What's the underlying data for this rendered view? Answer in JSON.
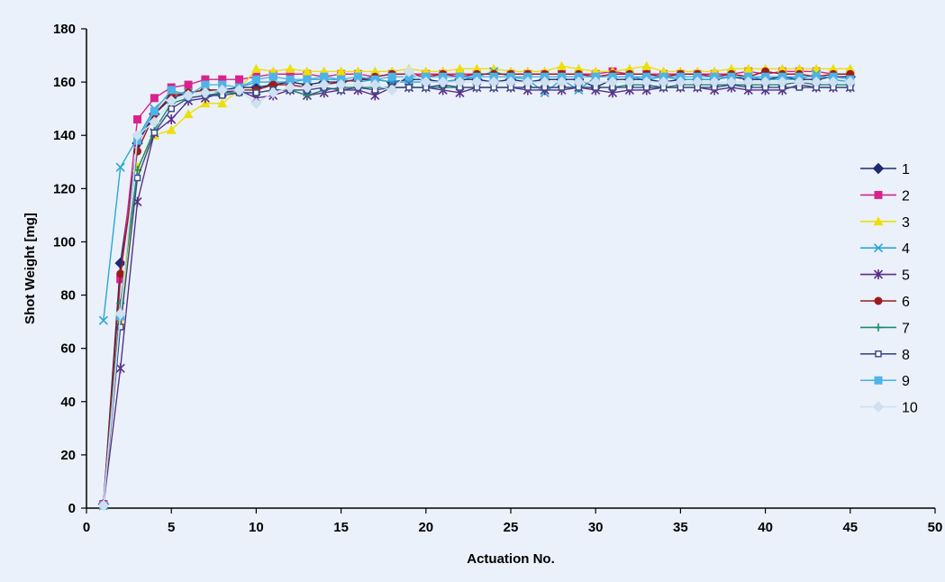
{
  "chart_data": {
    "type": "line",
    "title": "",
    "xlabel": "Actuation No.",
    "ylabel": "Shot Weight [mg]",
    "xlim": [
      0,
      50
    ],
    "ylim": [
      0,
      180
    ],
    "xticks": [
      0,
      5,
      10,
      15,
      20,
      25,
      30,
      35,
      40,
      45,
      50
    ],
    "yticks": [
      0,
      20,
      40,
      60,
      80,
      100,
      120,
      140,
      160,
      180
    ],
    "grid": false,
    "legend_position": "right",
    "x": [
      1,
      2,
      3,
      4,
      5,
      6,
      7,
      8,
      9,
      10,
      11,
      12,
      13,
      14,
      15,
      16,
      17,
      18,
      19,
      20,
      21,
      22,
      23,
      24,
      25,
      26,
      27,
      28,
      29,
      30,
      31,
      32,
      33,
      34,
      35,
      36,
      37,
      38,
      39,
      40,
      41,
      42,
      43,
      44,
      45
    ],
    "series": [
      {
        "name": "1",
        "color": "#1f2a6e",
        "marker": "diamond",
        "values": [
          1.5,
          92,
          137,
          148,
          154,
          156,
          157,
          157,
          158,
          158,
          159,
          160,
          159,
          160,
          160,
          161,
          161,
          160,
          161,
          161,
          160,
          161,
          161,
          160,
          161,
          160,
          161,
          161,
          161,
          158,
          161,
          161,
          161,
          160,
          161,
          161,
          161,
          162,
          161,
          161,
          162,
          161,
          161,
          162,
          162
        ]
      },
      {
        "name": "2",
        "color": "#d9238c",
        "marker": "square",
        "values": [
          1.5,
          86,
          146,
          154,
          158,
          159,
          161,
          161,
          161,
          162,
          163,
          163,
          163,
          162,
          163,
          163,
          162,
          163,
          163,
          163,
          163,
          163,
          163,
          163,
          163,
          163,
          163,
          163,
          163,
          163,
          164,
          163,
          163,
          163,
          163,
          163,
          163,
          163,
          164,
          163,
          164,
          164,
          164,
          163,
          163
        ]
      },
      {
        "name": "3",
        "color": "#ecdf0a",
        "marker": "triangle",
        "values": [
          1,
          70,
          128,
          140,
          142,
          148,
          152,
          152,
          157,
          165,
          164,
          165,
          164,
          164,
          164,
          164,
          164,
          164,
          165,
          164,
          164,
          165,
          165,
          165,
          164,
          164,
          164,
          166,
          165,
          164,
          164,
          165,
          166,
          164,
          164,
          164,
          164,
          165,
          165,
          165,
          165,
          165,
          165,
          165,
          165
        ]
      },
      {
        "name": "4",
        "color": "#2ba6d4",
        "marker": "x",
        "values": [
          70.5,
          128,
          139,
          150,
          156,
          156,
          157,
          156,
          158,
          160,
          160,
          160,
          161,
          161,
          161,
          160,
          161,
          160,
          160,
          160,
          160,
          161,
          162,
          164,
          162,
          161,
          156,
          161,
          157,
          162,
          162,
          162,
          161,
          162,
          161,
          161,
          161,
          162,
          162,
          161,
          161,
          161,
          163,
          161,
          160
        ]
      },
      {
        "name": "5",
        "color": "#5b2d86",
        "marker": "star",
        "values": [
          1,
          52.5,
          115,
          141,
          146,
          153,
          154,
          156,
          157,
          154,
          155,
          157,
          155,
          156,
          157,
          157,
          155,
          158,
          158,
          158,
          157,
          156,
          158,
          158,
          158,
          157,
          157,
          157,
          158,
          157,
          156,
          157,
          157,
          158,
          158,
          158,
          157,
          158,
          157,
          157,
          157,
          159,
          158,
          158,
          158
        ]
      },
      {
        "name": "6",
        "color": "#9c1b1b",
        "marker": "circle",
        "values": [
          1,
          88,
          134,
          148,
          155,
          156,
          157,
          157,
          157,
          157,
          159,
          159,
          158,
          159,
          160,
          161,
          162,
          163,
          163,
          162,
          163,
          162,
          163,
          163,
          163,
          163,
          163,
          163,
          163,
          162,
          163,
          163,
          163,
          162,
          163,
          163,
          162,
          163,
          162,
          164,
          163,
          163,
          162,
          163,
          163
        ]
      },
      {
        "name": "7",
        "color": "#1b8a6a",
        "marker": "plus",
        "values": [
          1,
          77,
          127,
          142,
          152,
          154,
          155,
          156,
          156,
          156,
          157,
          157,
          155,
          157,
          158,
          158,
          158,
          158,
          158,
          158,
          158,
          158,
          158,
          158,
          158,
          158,
          158,
          158,
          158,
          158,
          158,
          159,
          159,
          158,
          159,
          159,
          159,
          159,
          159,
          159,
          159,
          160,
          159,
          159,
          159
        ]
      },
      {
        "name": "8",
        "color": "#3b4a8a",
        "marker": "smallsquare",
        "values": [
          1,
          68,
          124,
          141,
          150,
          154,
          155,
          155,
          156,
          156,
          157,
          157,
          157,
          158,
          157,
          158,
          157,
          158,
          158,
          158,
          159,
          158,
          158,
          158,
          158,
          158,
          158,
          158,
          158,
          158,
          158,
          158,
          158,
          158,
          158,
          158,
          158,
          159,
          158,
          158,
          158,
          158,
          158,
          158,
          158
        ]
      },
      {
        "name": "9",
        "color": "#4fb3e6",
        "marker": "square",
        "values": [
          1,
          72,
          138,
          149,
          157,
          155,
          159,
          159,
          158,
          161,
          162,
          161,
          161,
          162,
          161,
          162,
          161,
          162,
          162,
          162,
          162,
          162,
          162,
          162,
          162,
          162,
          162,
          162,
          162,
          162,
          162,
          162,
          162,
          162,
          162,
          162,
          162,
          162,
          162,
          162,
          162,
          162,
          162,
          162,
          161
        ]
      },
      {
        "name": "10",
        "color": "#cfe0f0",
        "marker": "diamond",
        "values": [
          1,
          73,
          140,
          145,
          153,
          155,
          156,
          157,
          157,
          152,
          156,
          158,
          158,
          159,
          159,
          159,
          159,
          157,
          164,
          160,
          160,
          160,
          160,
          160,
          160,
          160,
          160,
          160,
          160,
          160,
          160,
          160,
          160,
          160,
          160,
          160,
          160,
          160,
          160,
          160,
          160,
          160,
          160,
          160,
          160
        ]
      }
    ]
  }
}
